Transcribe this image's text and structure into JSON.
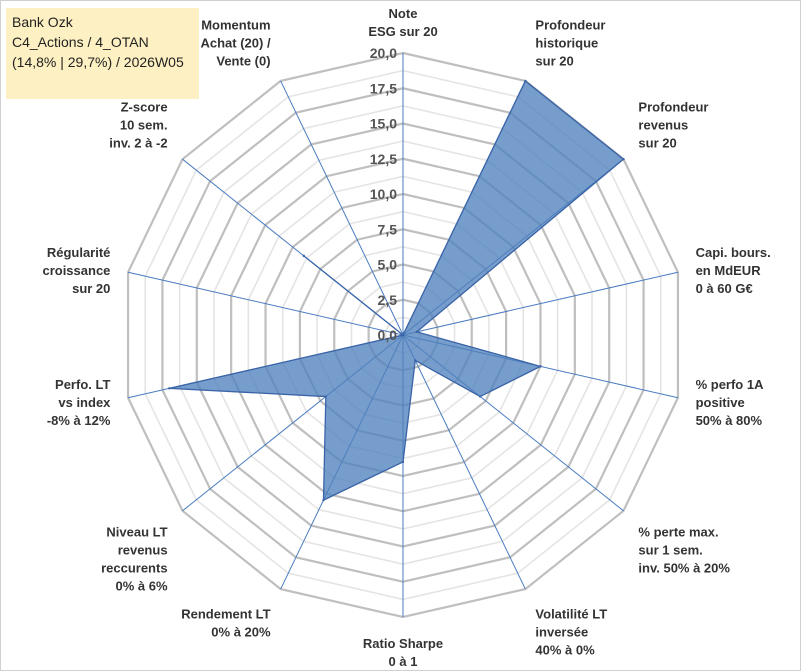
{
  "header": {
    "line1": "Bank Ozk",
    "line2": "C4_Actions / 4_OTAN",
    "line3": "(14,8% | 29,7%) / 2026W05"
  },
  "chart_data": {
    "type": "radar",
    "axes": [
      [
        "Note",
        "ESG sur 20"
      ],
      [
        "Profondeur",
        "historique",
        "sur 20"
      ],
      [
        "Profondeur",
        "revenus",
        "sur 20"
      ],
      [
        "Capi. bours.",
        "en MdEUR",
        "0 à 60 G€"
      ],
      [
        "% perfo 1A",
        "positive",
        "50% à 80%"
      ],
      [
        "% perte max.",
        "sur 1 sem.",
        "inv. 50% à 20%"
      ],
      [
        "Volatilité LT",
        "inversée",
        "40% à 0%"
      ],
      [
        "Ratio Sharpe",
        "0 à 1"
      ],
      [
        "Rendement LT",
        "0% à 20%"
      ],
      [
        "Niveau LT",
        "revenus",
        "reccurents",
        "0% à 6%"
      ],
      [
        "Perfo. LT",
        "vs index",
        "-8% à 12%"
      ],
      [
        "Régularité",
        "croissance",
        "sur 20"
      ],
      [
        "Z-score",
        "10 sem.",
        "inv. 2 à -2"
      ],
      [
        "Momentum",
        "Achat (20) /",
        "Vente (0)"
      ]
    ],
    "values": [
      0,
      20,
      20,
      1,
      10,
      7,
      2,
      9,
      13,
      7,
      17,
      0,
      9,
      0
    ],
    "range": [
      0,
      20
    ],
    "major_step": 2.5,
    "minor_step": 1.25,
    "tick_labels": [
      "0,0",
      "2,5",
      "5,0",
      "7,5",
      "10,0",
      "12,5",
      "15,0",
      "17,5",
      "20,0"
    ],
    "colors": {
      "fill": "#4f81bd",
      "stroke": "#3a64a8",
      "spoke": "#4a7cc0",
      "grid_major": "#bfbfbf",
      "grid_minor": "#e4e4e4",
      "header_bg": "#fdf0c2"
    },
    "grid": true,
    "legend": "none"
  }
}
